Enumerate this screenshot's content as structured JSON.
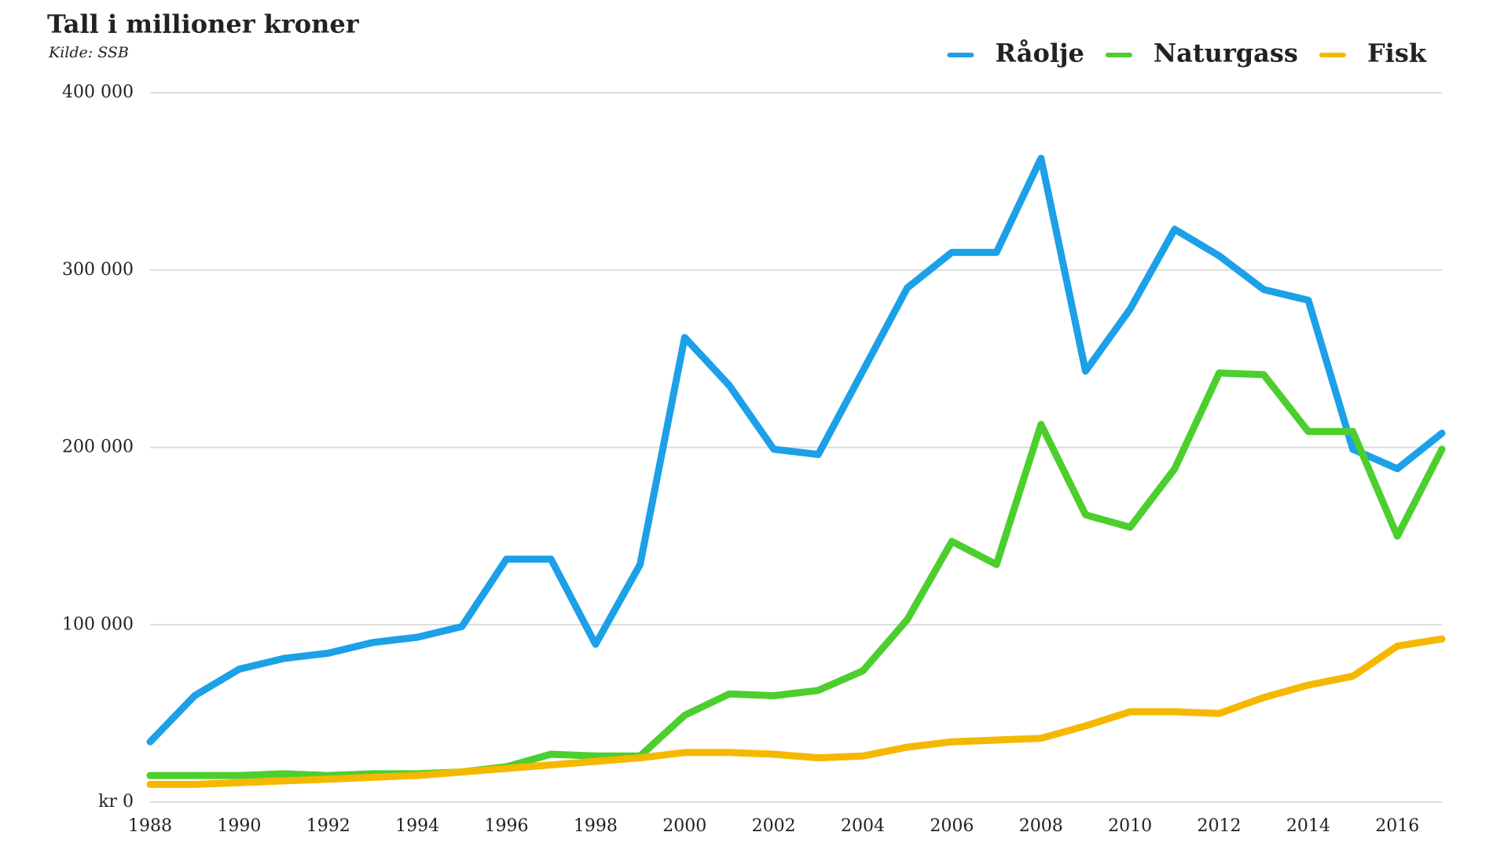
{
  "chart_data": {
    "type": "line",
    "title": "Tall i millioner kroner",
    "subtitle": "Kilde: SSB",
    "x": [
      1988,
      1989,
      1990,
      1991,
      1992,
      1993,
      1994,
      1995,
      1996,
      1997,
      1998,
      1999,
      2000,
      2001,
      2002,
      2003,
      2004,
      2005,
      2006,
      2007,
      2008,
      2009,
      2010,
      2011,
      2012,
      2013,
      2014,
      2015,
      2016,
      2017
    ],
    "xlim": [
      1988,
      2017
    ],
    "xticks": [
      1988,
      1990,
      1992,
      1994,
      1996,
      1998,
      2000,
      2002,
      2004,
      2006,
      2008,
      2010,
      2012,
      2014,
      2016
    ],
    "ylim": [
      0,
      400000
    ],
    "yticks": [
      {
        "value": 0,
        "label": "kr 0"
      },
      {
        "value": 100000,
        "label": "100 000"
      },
      {
        "value": 200000,
        "label": "200 000"
      },
      {
        "value": 300000,
        "label": "300 000"
      },
      {
        "value": 400000,
        "label": "400 000"
      }
    ],
    "grid": true,
    "legend": "top-right",
    "series": [
      {
        "name": "Råolje",
        "color": "#1ca0e8",
        "values": [
          34000,
          60000,
          75000,
          81000,
          84000,
          90000,
          93000,
          99000,
          137000,
          137000,
          89000,
          134000,
          262000,
          235000,
          199000,
          196000,
          243000,
          290000,
          310000,
          310000,
          363000,
          243000,
          278000,
          323000,
          308000,
          289000,
          283000,
          199000,
          188000,
          208000
        ]
      },
      {
        "name": "Naturgass",
        "color": "#4ccf2e",
        "values": [
          15000,
          15000,
          15000,
          16000,
          15000,
          16000,
          16000,
          17000,
          20000,
          27000,
          26000,
          26000,
          49000,
          61000,
          60000,
          63000,
          74000,
          103000,
          147000,
          134000,
          213000,
          162000,
          155000,
          188000,
          242000,
          241000,
          209000,
          209000,
          150000,
          199000
        ]
      },
      {
        "name": "Fisk",
        "color": "#f5b800",
        "values": [
          10000,
          10000,
          11000,
          12000,
          13000,
          14000,
          15000,
          17000,
          19000,
          21000,
          23000,
          25000,
          28000,
          28000,
          27000,
          25000,
          26000,
          31000,
          34000,
          35000,
          36000,
          43000,
          51000,
          51000,
          50000,
          59000,
          66000,
          71000,
          88000,
          92000
        ]
      }
    ]
  }
}
